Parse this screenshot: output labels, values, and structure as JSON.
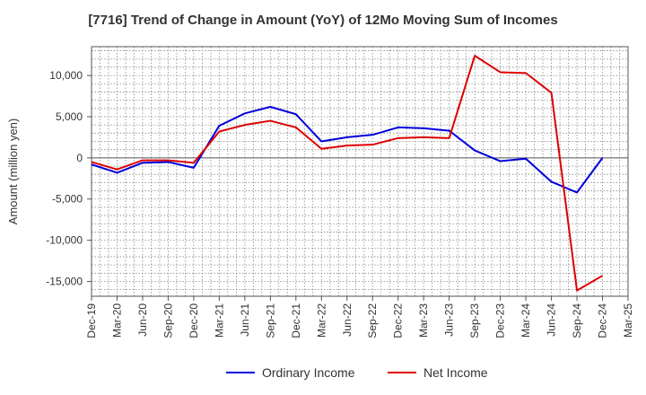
{
  "chart_data": {
    "type": "line",
    "title": "[7716]  Trend of Change in Amount (YoY) of 12Mo Moving Sum of Incomes",
    "ylabel": "Amount (million yen)",
    "xlabel": "",
    "ylim": [
      -16800,
      13500
    ],
    "yticks": [
      10000,
      5000,
      0,
      -5000,
      -10000,
      -15000
    ],
    "ytick_labels": [
      "10,000",
      "5,000",
      "0",
      "-5,000",
      "-10,000",
      "-15,000"
    ],
    "categories": [
      "Dec-19",
      "Mar-20",
      "Jun-20",
      "Sep-20",
      "Dec-20",
      "Mar-21",
      "Jun-21",
      "Sep-21",
      "Dec-21",
      "Mar-22",
      "Jun-22",
      "Sep-22",
      "Dec-22",
      "Mar-23",
      "Jun-23",
      "Sep-23",
      "Dec-23",
      "Mar-24",
      "Jun-24",
      "Sep-24",
      "Dec-24",
      "Mar-25"
    ],
    "grid": true,
    "legend_position": "bottom",
    "series": [
      {
        "name": "Ordinary Income",
        "color": "#0000dd",
        "values": [
          -800,
          -1800,
          -600,
          -500,
          -1200,
          3900,
          5400,
          6200,
          5300,
          2000,
          2500,
          2800,
          3700,
          3600,
          3300,
          900,
          -400,
          -100,
          -2900,
          -4200,
          0,
          null
        ]
      },
      {
        "name": "Net Income",
        "color": "#dd0000",
        "values": [
          -500,
          -1400,
          -300,
          -300,
          -600,
          3200,
          4000,
          4500,
          3700,
          1100,
          1500,
          1600,
          2400,
          2500,
          2400,
          12400,
          10400,
          10300,
          7900,
          -16100,
          -14300,
          null
        ]
      }
    ]
  }
}
